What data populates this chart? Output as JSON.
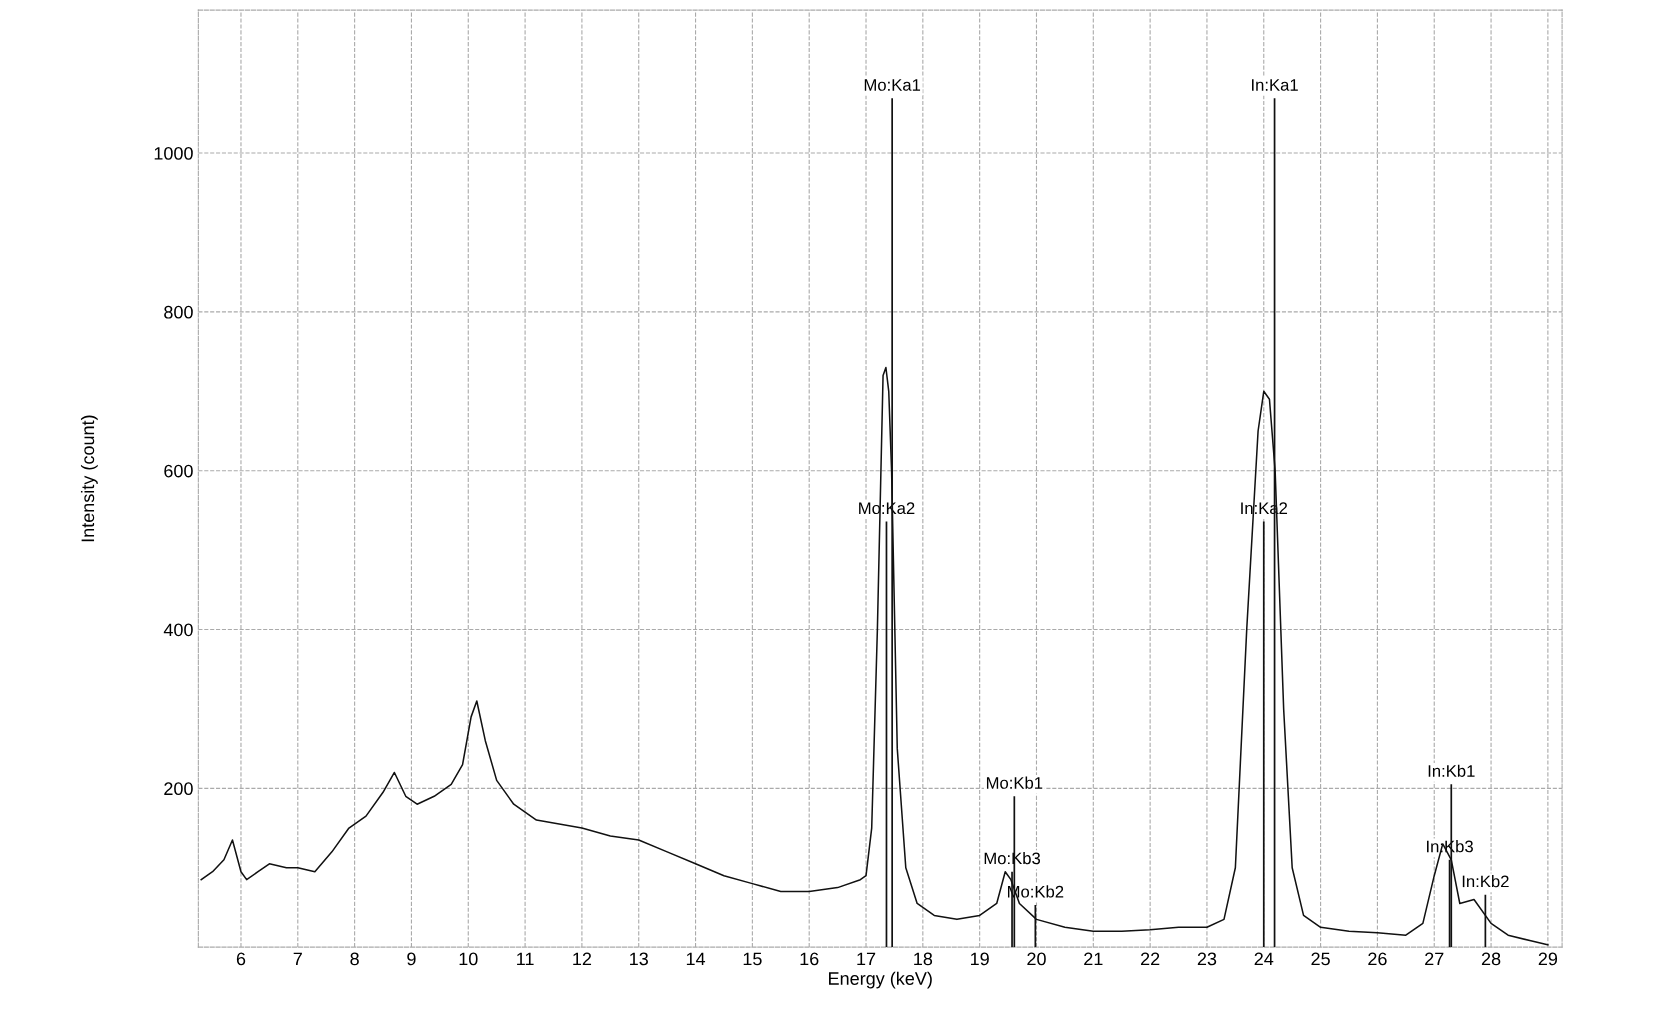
{
  "chart_data": {
    "type": "line",
    "xlabel": "Energy (keV)",
    "ylabel": "Intensity (count)",
    "xlim": [
      5.25,
      29.25
    ],
    "xticks": [
      6,
      7,
      8,
      9,
      10,
      11,
      12,
      13,
      14,
      15,
      16,
      17,
      18,
      19,
      20,
      21,
      22,
      23,
      24,
      25,
      26,
      27,
      28,
      29
    ],
    "ylim": [
      0,
      1180
    ],
    "yticks": [
      200,
      400,
      600,
      800,
      1000
    ],
    "grid": true,
    "line_style": "solid",
    "series": [
      {
        "color": "#111111",
        "x": [
          5.3,
          5.5,
          5.7,
          5.85,
          6.0,
          6.1,
          6.3,
          6.5,
          6.8,
          7.0,
          7.3,
          7.6,
          7.9,
          8.2,
          8.5,
          8.7,
          8.9,
          9.1,
          9.4,
          9.7,
          9.9,
          10.05,
          10.15,
          10.3,
          10.5,
          10.8,
          11.2,
          11.6,
          12.0,
          12.5,
          13.0,
          13.5,
          14.0,
          14.5,
          15.0,
          15.5,
          16.0,
          16.5,
          16.9,
          17.0,
          17.1,
          17.2,
          17.3,
          17.35,
          17.4,
          17.45,
          17.55,
          17.7,
          17.9,
          18.2,
          18.6,
          19.0,
          19.3,
          19.45,
          19.55,
          19.7,
          20.0,
          20.5,
          21.0,
          21.5,
          22.0,
          22.5,
          23.0,
          23.3,
          23.5,
          23.7,
          23.9,
          24.0,
          24.1,
          24.2,
          24.35,
          24.5,
          24.7,
          25.0,
          25.5,
          26.0,
          26.5,
          26.8,
          27.0,
          27.15,
          27.3,
          27.45,
          27.7,
          28.0,
          28.3,
          28.7,
          29.0
        ],
        "values": [
          85,
          95,
          110,
          135,
          95,
          85,
          95,
          105,
          100,
          100,
          95,
          120,
          150,
          165,
          195,
          220,
          190,
          180,
          190,
          205,
          230,
          290,
          310,
          260,
          210,
          180,
          160,
          155,
          150,
          140,
          135,
          120,
          105,
          90,
          80,
          70,
          70,
          75,
          85,
          90,
          150,
          400,
          720,
          730,
          700,
          600,
          250,
          100,
          55,
          40,
          35,
          40,
          55,
          95,
          85,
          55,
          35,
          25,
          20,
          20,
          22,
          25,
          25,
          35,
          100,
          400,
          650,
          700,
          690,
          600,
          300,
          100,
          40,
          25,
          20,
          18,
          15,
          30,
          90,
          130,
          110,
          55,
          60,
          30,
          15,
          8,
          3
        ]
      },
      {
        "type": "bar",
        "color": "#111111",
        "x": [
          17.36,
          17.46,
          19.57,
          19.61,
          19.98,
          24.0,
          24.19,
          27.27,
          27.3,
          27.9
        ],
        "values": [
          536,
          1069,
          95,
          190,
          53,
          536,
          1069,
          110,
          205,
          66
        ]
      }
    ],
    "annotations": [
      {
        "text": "Mo:Ka1",
        "x": 17.46,
        "y": 1069
      },
      {
        "text": "Mo:Ka2",
        "x": 17.36,
        "y": 536
      },
      {
        "text": "In:Ka1",
        "x": 24.19,
        "y": 1069
      },
      {
        "text": "In:Ka2",
        "x": 24.0,
        "y": 536
      },
      {
        "text": "Mo:Kb1",
        "x": 19.61,
        "y": 190
      },
      {
        "text": "Mo:Kb3",
        "x": 19.57,
        "y": 95
      },
      {
        "text": "Mo:Kb2",
        "x": 19.98,
        "y": 53
      },
      {
        "text": "In:Kb1",
        "x": 27.3,
        "y": 205
      },
      {
        "text": "In:Kb3",
        "x": 27.27,
        "y": 110
      },
      {
        "text": "In:Kb2",
        "x": 27.9,
        "y": 66
      }
    ]
  }
}
